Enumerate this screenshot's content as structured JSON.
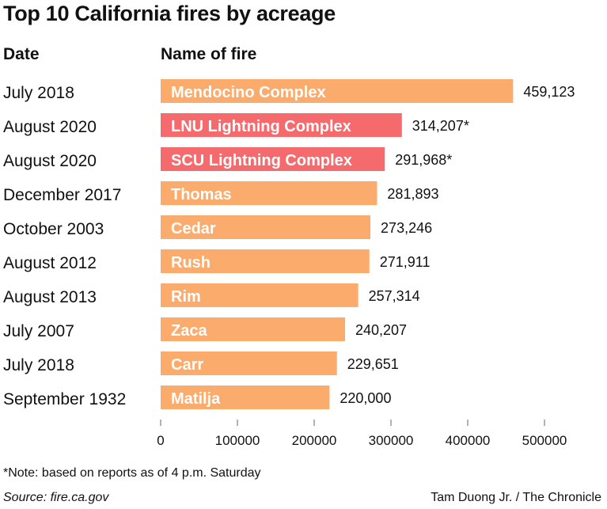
{
  "title": "Top 10 California fires by acreage",
  "headers": {
    "date": "Date",
    "name": "Name of fire"
  },
  "footnote": "*Note: based on reports as of 4 p.m. Saturday",
  "source": "Source: fire.ca.gov",
  "credit": "Tam Duong Jr. / The Chronicle",
  "colors": {
    "default": "#fbab6b",
    "current": "#f46a6d"
  },
  "chart_data": {
    "type": "bar",
    "orientation": "horizontal",
    "categories": [
      "Mendocino Complex",
      "LNU Lightning Complex",
      "SCU Lightning Complex",
      "Thomas",
      "Cedar",
      "Rush",
      "Rim",
      "Zaca",
      "Carr",
      "Matilja"
    ],
    "dates": [
      "July 2018",
      "August 2020",
      "August 2020",
      "December 2017",
      "October 2003",
      "August 2012",
      "August 2013",
      "July 2007",
      "July 2018",
      "September 1932"
    ],
    "values": [
      459123,
      314207,
      291968,
      281893,
      273246,
      271911,
      257314,
      240207,
      229651,
      220000
    ],
    "value_labels": [
      "459,123",
      "314,207*",
      "291,968*",
      "281,893",
      "273,246",
      "271,911",
      "257,314",
      "240,207",
      "229,651",
      "220,000"
    ],
    "highlight": [
      false,
      true,
      true,
      false,
      false,
      false,
      false,
      false,
      false,
      false
    ],
    "xticks": [
      "0",
      "100000",
      "200000",
      "300000",
      "400000",
      "500000"
    ],
    "xlim": [
      0,
      500000
    ]
  }
}
